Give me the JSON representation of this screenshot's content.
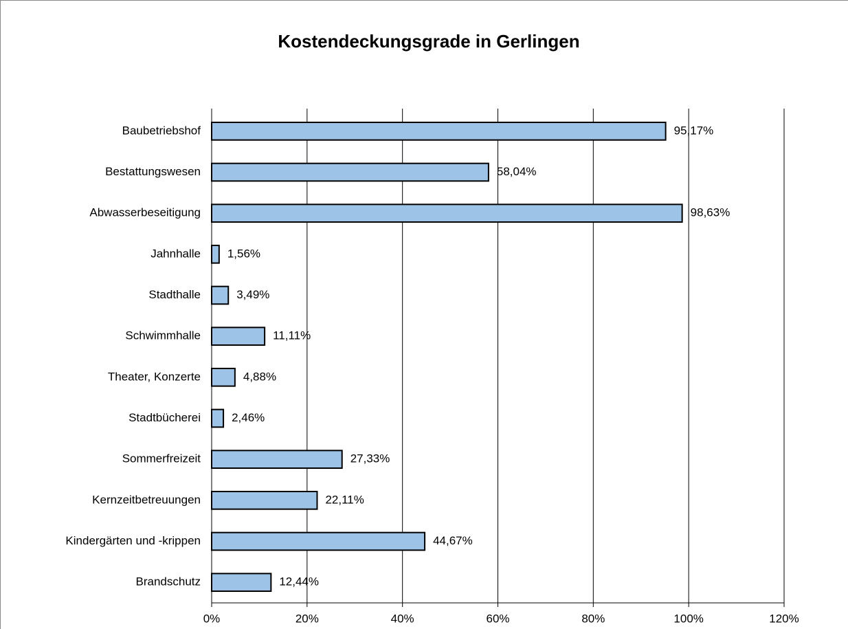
{
  "chart_data": {
    "type": "bar",
    "orientation": "horizontal",
    "title": "Kostendeckungsgrade in Gerlingen",
    "categories": [
      "Baubetriebshof",
      "Bestattungswesen",
      "Abwasserbeseitigung",
      "Jahnhalle",
      "Stadthalle",
      "Schwimmhalle",
      "Theater, Konzerte",
      "Stadtbücherei",
      "Sommerfreizeit",
      "Kernzeitbetreuungen",
      "Kindergärten und -krippen",
      "Brandschutz"
    ],
    "values": [
      95.17,
      58.04,
      98.63,
      1.56,
      3.49,
      11.11,
      4.88,
      2.46,
      27.33,
      22.11,
      44.67,
      12.44
    ],
    "value_labels": [
      "95,17%",
      "58,04%",
      "98,63%",
      "1,56%",
      "3,49%",
      "11,11%",
      "4,88%",
      "2,46%",
      "27,33%",
      "22,11%",
      "44,67%",
      "12,44%"
    ],
    "color": "#9dc3e6",
    "xlim": [
      0,
      120
    ],
    "xticks": [
      {
        "value": 0,
        "label": "0%"
      },
      {
        "value": 20,
        "label": "20%"
      },
      {
        "value": 40,
        "label": "40%"
      },
      {
        "value": 60,
        "label": "60%"
      },
      {
        "value": 80,
        "label": "80%"
      },
      {
        "value": 100,
        "label": "100%"
      },
      {
        "value": 120,
        "label": "120%"
      }
    ],
    "grid": true
  }
}
